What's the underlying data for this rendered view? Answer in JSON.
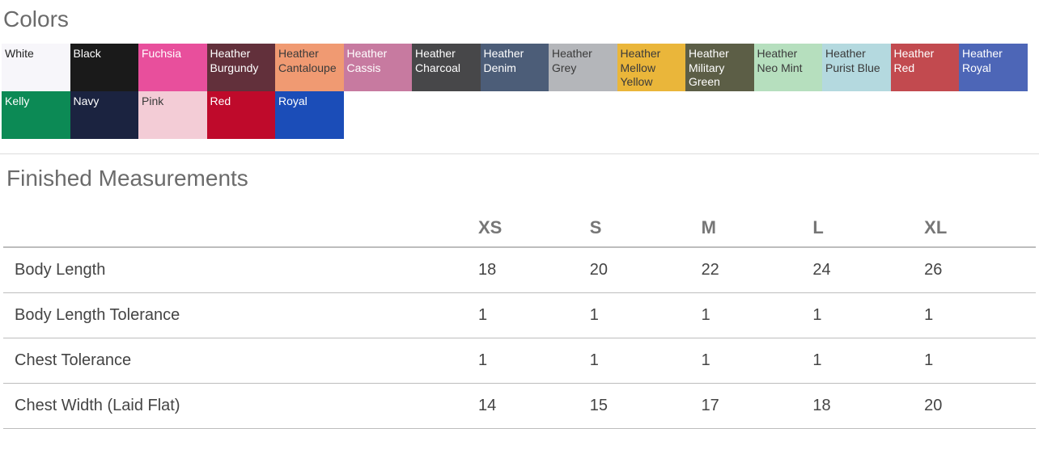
{
  "colors_section": {
    "title": "Colors",
    "swatches": [
      {
        "name": "White",
        "bg": "#f7f6fa",
        "text": "#222222"
      },
      {
        "name": "Black",
        "bg": "#1a1a1a",
        "text": "#ffffff"
      },
      {
        "name": "Fuchsia",
        "bg": "#e84f9c",
        "text": "#ffffff"
      },
      {
        "name": "Heather Burgundy",
        "bg": "#62303b",
        "text": "#ffffff"
      },
      {
        "name": "Heather Cantaloupe",
        "bg": "#f09a72",
        "text": "#3a3a3a"
      },
      {
        "name": "Heather Cassis",
        "bg": "#c77aa0",
        "text": "#ffffff"
      },
      {
        "name": "Heather Charcoal",
        "bg": "#474749",
        "text": "#ffffff"
      },
      {
        "name": "Heather Denim",
        "bg": "#4c5d78",
        "text": "#ffffff"
      },
      {
        "name": "Heather Grey",
        "bg": "#b4b6ba",
        "text": "#3a3a3a"
      },
      {
        "name": "Heather Mellow Yellow",
        "bg": "#eab63a",
        "text": "#3a3a3a"
      },
      {
        "name": "Heather Military Green",
        "bg": "#5c5e46",
        "text": "#ffffff"
      },
      {
        "name": "Heather Neo Mint",
        "bg": "#b6dfbe",
        "text": "#3a3a3a"
      },
      {
        "name": "Heather Purist Blue",
        "bg": "#b4d9df",
        "text": "#3a3a3a"
      },
      {
        "name": "Heather Red",
        "bg": "#c24a4f",
        "text": "#ffffff"
      },
      {
        "name": "Heather Royal",
        "bg": "#4d66b7",
        "text": "#ffffff"
      },
      {
        "name": "Kelly",
        "bg": "#0c8a55",
        "text": "#ffffff"
      },
      {
        "name": "Navy",
        "bg": "#1b2340",
        "text": "#ffffff"
      },
      {
        "name": "Pink",
        "bg": "#f3ccd6",
        "text": "#3a3a3a"
      },
      {
        "name": "Red",
        "bg": "#bf0a2b",
        "text": "#ffffff"
      },
      {
        "name": "Royal",
        "bg": "#1b4db8",
        "text": "#ffffff"
      }
    ]
  },
  "measurements_section": {
    "title": "Finished Measurements",
    "columns": [
      "",
      "XS",
      "S",
      "M",
      "L",
      "XL"
    ],
    "rows": [
      {
        "label": "Body Length",
        "values": [
          "18",
          "20",
          "22",
          "24",
          "26"
        ]
      },
      {
        "label": "Body Length Tolerance",
        "values": [
          "1",
          "1",
          "1",
          "1",
          "1"
        ]
      },
      {
        "label": "Chest Tolerance",
        "values": [
          "1",
          "1",
          "1",
          "1",
          "1"
        ]
      },
      {
        "label": "Chest Width (Laid Flat)",
        "values": [
          "14",
          "15",
          "17",
          "18",
          "20"
        ]
      }
    ]
  }
}
